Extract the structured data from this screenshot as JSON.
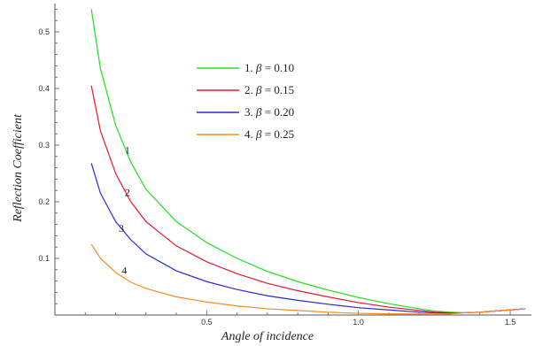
{
  "chart_data": {
    "type": "line",
    "title": "",
    "xlabel": "Angle of incidence",
    "ylabel": "Reflection Coefficient",
    "xlim": [
      0.0,
      1.57
    ],
    "ylim": [
      0.0,
      0.55
    ],
    "x_ticks": [
      0.5,
      1.0,
      1.5
    ],
    "x_tick_labels": [
      "0.5",
      "1.0",
      "1.5"
    ],
    "y_ticks": [
      0.1,
      0.2,
      0.3,
      0.4,
      0.5
    ],
    "y_tick_labels": [
      "0.1",
      "0.2",
      "0.3",
      "0.4",
      "0.5"
    ],
    "grid": false,
    "legend_position": "upper-center",
    "series": [
      {
        "name": "1.",
        "beta_text": "= 0.10",
        "curve_label": "1",
        "color": "#22dd22",
        "points": [
          [
            0.12,
            0.54
          ],
          [
            0.15,
            0.435
          ],
          [
            0.2,
            0.335
          ],
          [
            0.25,
            0.27
          ],
          [
            0.3,
            0.222
          ],
          [
            0.4,
            0.165
          ],
          [
            0.5,
            0.128
          ],
          [
            0.6,
            0.1
          ],
          [
            0.7,
            0.077
          ],
          [
            0.8,
            0.059
          ],
          [
            0.9,
            0.044
          ],
          [
            1.0,
            0.031
          ],
          [
            1.1,
            0.02
          ],
          [
            1.2,
            0.011
          ],
          [
            1.25,
            0.007
          ],
          [
            1.3,
            0.005
          ],
          [
            1.35,
            0.004
          ],
          [
            1.4,
            0.005
          ],
          [
            1.45,
            0.007
          ],
          [
            1.5,
            0.009
          ],
          [
            1.55,
            0.011
          ]
        ]
      },
      {
        "name": "2.",
        "beta_text": "= 0.15",
        "curve_label": "2",
        "color": "#e8192c",
        "points": [
          [
            0.12,
            0.405
          ],
          [
            0.15,
            0.325
          ],
          [
            0.2,
            0.25
          ],
          [
            0.25,
            0.2
          ],
          [
            0.3,
            0.165
          ],
          [
            0.4,
            0.122
          ],
          [
            0.5,
            0.094
          ],
          [
            0.6,
            0.073
          ],
          [
            0.7,
            0.056
          ],
          [
            0.8,
            0.043
          ],
          [
            0.9,
            0.032
          ],
          [
            1.0,
            0.022
          ],
          [
            1.1,
            0.014
          ],
          [
            1.2,
            0.008
          ],
          [
            1.25,
            0.005
          ],
          [
            1.3,
            0.004
          ],
          [
            1.35,
            0.004
          ],
          [
            1.4,
            0.005
          ],
          [
            1.45,
            0.007
          ],
          [
            1.5,
            0.009
          ],
          [
            1.55,
            0.011
          ]
        ]
      },
      {
        "name": "3.",
        "beta_text": "= 0.20",
        "curve_label": "3",
        "color": "#2a2ad4",
        "points": [
          [
            0.12,
            0.268
          ],
          [
            0.15,
            0.215
          ],
          [
            0.2,
            0.165
          ],
          [
            0.25,
            0.133
          ],
          [
            0.3,
            0.108
          ],
          [
            0.4,
            0.078
          ],
          [
            0.5,
            0.059
          ],
          [
            0.6,
            0.045
          ],
          [
            0.7,
            0.034
          ],
          [
            0.8,
            0.026
          ],
          [
            0.9,
            0.019
          ],
          [
            1.0,
            0.013
          ],
          [
            1.1,
            0.009
          ],
          [
            1.2,
            0.005
          ],
          [
            1.25,
            0.004
          ],
          [
            1.3,
            0.003
          ],
          [
            1.35,
            0.004
          ],
          [
            1.4,
            0.005
          ],
          [
            1.45,
            0.007
          ],
          [
            1.5,
            0.009
          ],
          [
            1.55,
            0.011
          ]
        ]
      },
      {
        "name": "4.",
        "beta_text": "= 0.25",
        "curve_label": "4",
        "color": "#ff8a1c",
        "points": [
          [
            0.12,
            0.125
          ],
          [
            0.15,
            0.1
          ],
          [
            0.2,
            0.075
          ],
          [
            0.25,
            0.058
          ],
          [
            0.3,
            0.047
          ],
          [
            0.4,
            0.032
          ],
          [
            0.5,
            0.023
          ],
          [
            0.6,
            0.016
          ],
          [
            0.7,
            0.011
          ],
          [
            0.8,
            0.008
          ],
          [
            0.9,
            0.005
          ],
          [
            1.0,
            0.003
          ],
          [
            1.1,
            0.002
          ],
          [
            1.2,
            0.002
          ],
          [
            1.25,
            0.002
          ],
          [
            1.3,
            0.002
          ],
          [
            1.35,
            0.004
          ],
          [
            1.4,
            0.005
          ],
          [
            1.45,
            0.007
          ],
          [
            1.5,
            0.009
          ],
          [
            1.55,
            0.011
          ]
        ]
      }
    ]
  }
}
